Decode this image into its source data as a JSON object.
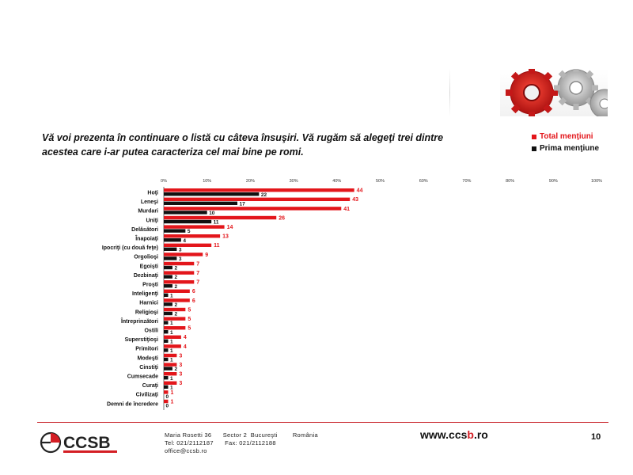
{
  "question": "Vă voi prezenta în continuare o listă cu câteva însuşiri. Vă rugăm să alegeţi trei dintre acestea care i-ar putea caracteriza cel mai bine pe romi.",
  "legend": {
    "total": "Total menţiuni",
    "prima": "Prima menţiune"
  },
  "colors": {
    "total": "#e3161b",
    "prima": "#111111",
    "accent": "#c9262c"
  },
  "chart_data": {
    "type": "bar",
    "orientation": "horizontal",
    "x_ticks": [
      "0%",
      "10%",
      "20%",
      "30%",
      "40%",
      "50%",
      "60%",
      "70%",
      "80%",
      "90%",
      "100%"
    ],
    "xlim": [
      0,
      100
    ],
    "categories": [
      "Hoţi",
      "Leneşi",
      "Murdari",
      "Uniţi",
      "Delăsători",
      "Înapoiaţi",
      "Ipocriţi (cu două feţe)",
      "Orgolioşi",
      "Egoişti",
      "Dezbinaţi",
      "Proşti",
      "Inteligenţi",
      "Harnici",
      "Religioşi",
      "Întreprinzători",
      "Ostili",
      "Superstiţioşi",
      "Primitori",
      "Modeşti",
      "Cinstiţi",
      "Cumsecade",
      "Curaţi",
      "Civilizaţi",
      "Demni de încredere"
    ],
    "series": [
      {
        "name": "Total menţiuni",
        "values": [
          44,
          43,
          41,
          26,
          14,
          13,
          11,
          9,
          7,
          7,
          7,
          6,
          6,
          5,
          5,
          5,
          4,
          4,
          3,
          3,
          3,
          3,
          1,
          1
        ]
      },
      {
        "name": "Prima menţiune",
        "values": [
          22,
          17,
          10,
          11,
          5,
          4,
          3,
          3,
          2,
          2,
          2,
          1,
          2,
          2,
          1,
          1,
          1,
          1,
          1,
          2,
          1,
          1,
          0,
          0
        ]
      }
    ]
  },
  "footer": {
    "logo_text": "CCSB",
    "address_line1": "Maria Rosetti 36      Sector 2  Bucureşti        România",
    "address_line2": "Tel: 021/2112187      Fax: 021/2112188",
    "address_line3": "office@ccsb.ro",
    "website_prefix": "www.ccs",
    "website_accent": "b",
    "website_suffix": ".ro",
    "page_number": "10"
  }
}
